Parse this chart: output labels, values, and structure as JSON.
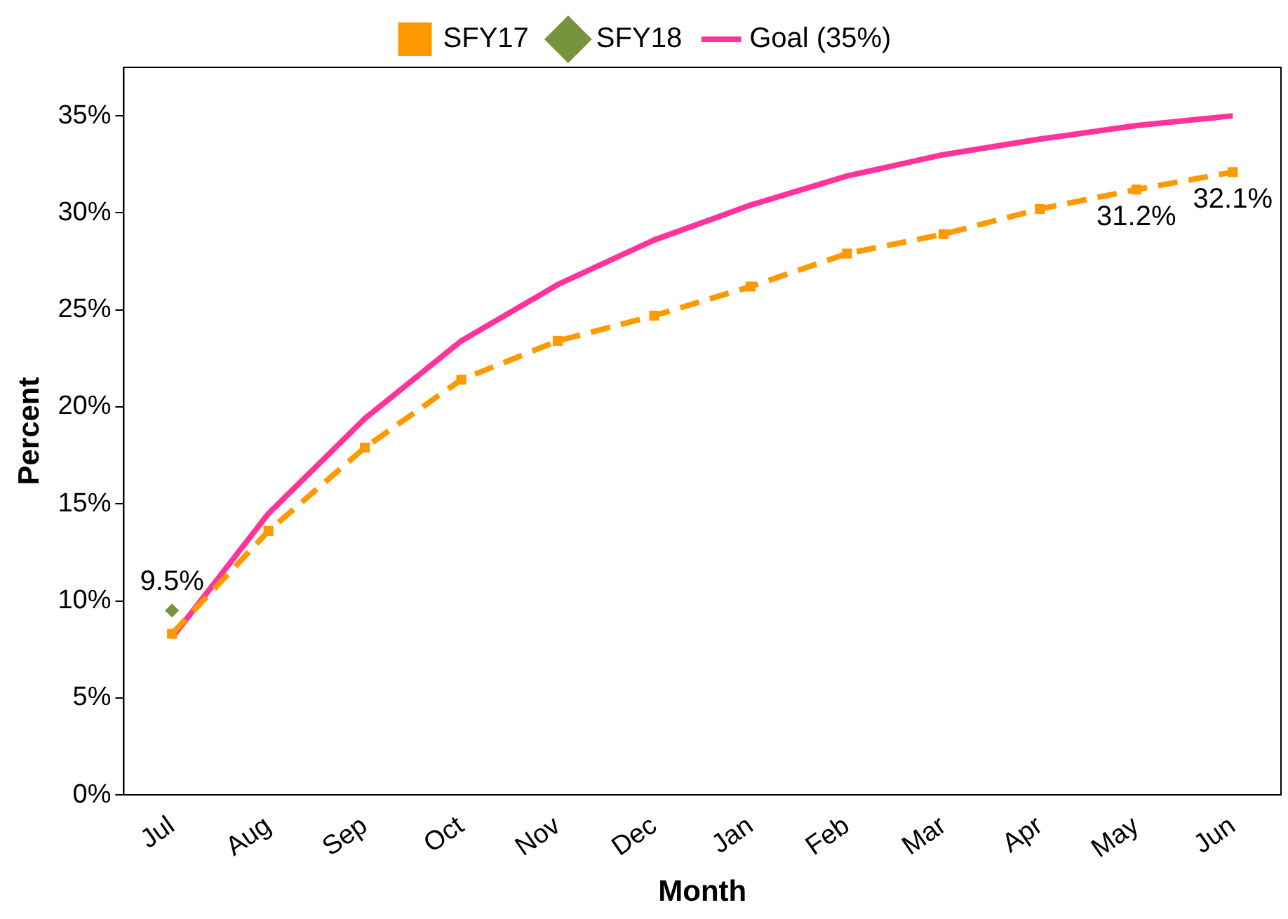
{
  "chart_data": {
    "type": "line",
    "xlabel": "Month",
    "ylabel": "Percent",
    "categories": [
      "Jul",
      "Aug",
      "Sep",
      "Oct",
      "Nov",
      "Dec",
      "Jan",
      "Feb",
      "Mar",
      "Apr",
      "May",
      "Jun"
    ],
    "series": [
      {
        "name": "SFY17",
        "color": "#ff9900",
        "marker": "square",
        "line_style": "dashed",
        "values": [
          8.3,
          13.6,
          17.9,
          21.4,
          23.4,
          24.7,
          26.2,
          27.9,
          28.9,
          30.2,
          31.2,
          32.1
        ],
        "value_labels": [
          null,
          null,
          null,
          null,
          null,
          null,
          null,
          null,
          null,
          null,
          "31.2%",
          "32.1%"
        ]
      },
      {
        "name": "SFY18",
        "color": "#77933c",
        "marker": "diamond",
        "line_style": "solid",
        "values": [
          9.5,
          null,
          null,
          null,
          null,
          null,
          null,
          null,
          null,
          null,
          null,
          null
        ],
        "value_labels": [
          "9.5%",
          null,
          null,
          null,
          null,
          null,
          null,
          null,
          null,
          null,
          null,
          null
        ]
      },
      {
        "name": "Goal (35%)",
        "color": "#ff3399",
        "marker": "none",
        "line_style": "solid",
        "values": [
          8.1,
          14.5,
          19.4,
          23.4,
          26.3,
          28.6,
          30.4,
          31.9,
          33.0,
          33.8,
          34.5,
          35.0
        ]
      }
    ],
    "ylim": [
      0,
      37.5
    ],
    "yticks": [
      {
        "value": 0,
        "label": "0%"
      },
      {
        "value": 5,
        "label": "5%"
      },
      {
        "value": 10,
        "label": "10%"
      },
      {
        "value": 15,
        "label": "15%"
      },
      {
        "value": 20,
        "label": "20%"
      },
      {
        "value": 25,
        "label": "25%"
      },
      {
        "value": 30,
        "label": "30%"
      },
      {
        "value": 35,
        "label": "35%"
      }
    ],
    "grid": false,
    "legend": "top"
  }
}
